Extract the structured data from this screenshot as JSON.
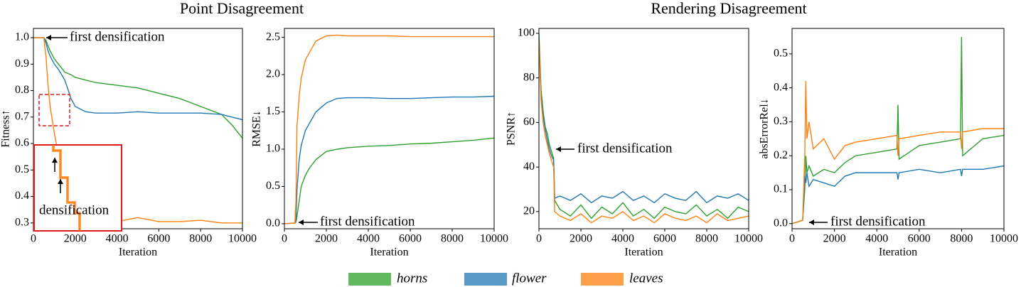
{
  "titles": [
    "Point Disagreement",
    "Rendering Disagreement"
  ],
  "chart_data": [
    {
      "type": "line",
      "ylabel": "Fitness↑",
      "xlabel": "Iteration",
      "annotations": [
        "first densification",
        "densification"
      ],
      "x": [
        0,
        500,
        600,
        700,
        800,
        1000,
        1200,
        1500,
        1800,
        2000,
        2500,
        3000,
        4000,
        5000,
        6000,
        7000,
        8000,
        9000,
        9500,
        10000
      ],
      "xlim": [
        0,
        10000
      ],
      "xticks": [
        0,
        2000,
        4000,
        6000,
        8000,
        10000
      ],
      "ylim": [
        0.278,
        1.035
      ],
      "yticks": [
        0.3,
        0.4,
        0.5,
        0.6,
        0.7,
        0.8,
        0.9,
        {
          "value": 1.0,
          "label": "1.0"
        }
      ],
      "series": [
        {
          "name": "horns",
          "color": "#2ca02c",
          "values": [
            1,
            1,
            0.99,
            0.97,
            0.95,
            0.92,
            0.9,
            0.87,
            0.86,
            0.85,
            0.84,
            0.83,
            0.82,
            0.81,
            0.79,
            0.77,
            0.74,
            0.71,
            0.67,
            0.62
          ]
        },
        {
          "name": "flower",
          "color": "#1f77b4",
          "values": [
            1,
            1,
            0.98,
            0.95,
            0.93,
            0.9,
            0.88,
            0.84,
            0.77,
            0.74,
            0.72,
            0.715,
            0.715,
            0.72,
            0.715,
            0.715,
            0.715,
            0.71,
            0.7,
            0.69
          ]
        },
        {
          "name": "leaves",
          "color": "#ff7f0e",
          "values": [
            1,
            1,
            0.93,
            0.82,
            0.74,
            0.64,
            0.55,
            0.45,
            0.38,
            0.32,
            0.305,
            0.305,
            0.305,
            0.32,
            0.305,
            0.305,
            0.31,
            0.3,
            0.3,
            0.3
          ]
        }
      ]
    },
    {
      "type": "line",
      "ylabel": "RMSE↓",
      "xlabel": "Iteration",
      "annotations": [
        "first densification"
      ],
      "x": [
        0,
        500,
        550,
        600,
        700,
        800,
        1000,
        1200,
        1500,
        2000,
        2500,
        3000,
        4000,
        5000,
        6000,
        7000,
        8000,
        9000,
        10000
      ],
      "xlim": [
        0,
        10000
      ],
      "xticks": [
        0,
        2000,
        4000,
        6000,
        8000,
        10000
      ],
      "ylim": [
        -0.067,
        2.62
      ],
      "yticks": [
        {
          "value": 0,
          "label": "0.0"
        },
        0.5,
        {
          "value": 1,
          "label": "1.0"
        },
        1.5,
        {
          "value": 2,
          "label": "2.0"
        },
        2.5
      ],
      "series": [
        {
          "name": "horns",
          "color": "#2ca02c",
          "values": [
            0,
            0.01,
            0.02,
            0.1,
            0.3,
            0.5,
            0.65,
            0.75,
            0.86,
            0.97,
            1.0,
            1.02,
            1.04,
            1.05,
            1.07,
            1.08,
            1.1,
            1.12,
            1.15
          ]
        },
        {
          "name": "flower",
          "color": "#1f77b4",
          "values": [
            0,
            0.01,
            0.05,
            0.45,
            0.85,
            1.05,
            1.25,
            1.35,
            1.5,
            1.62,
            1.68,
            1.69,
            1.69,
            1.68,
            1.68,
            1.69,
            1.7,
            1.7,
            1.71
          ]
        },
        {
          "name": "leaves",
          "color": "#ff7f0e",
          "values": [
            0,
            0.01,
            0.3,
            1.3,
            1.7,
            1.95,
            2.2,
            2.3,
            2.45,
            2.52,
            2.53,
            2.52,
            2.52,
            2.52,
            2.51,
            2.51,
            2.51,
            2.51,
            2.51
          ]
        }
      ]
    },
    {
      "type": "line",
      "ylabel": "PSNR↑",
      "xlabel": "Iteration",
      "annotations": [
        "first densification"
      ],
      "x": [
        0,
        100,
        200,
        300,
        400,
        500,
        600,
        700,
        750,
        1000,
        1500,
        2000,
        2500,
        3000,
        3500,
        4000,
        4500,
        5000,
        5500,
        6000,
        6500,
        7000,
        7500,
        8000,
        8500,
        9000,
        9500,
        10000
      ],
      "xlim": [
        0,
        10000
      ],
      "xticks": [
        0,
        2000,
        4000,
        6000,
        8000,
        10000
      ],
      "ylim": [
        12.3,
        102.2
      ],
      "yticks": [
        20,
        40,
        60,
        80,
        100
      ],
      "series": [
        {
          "name": "horns",
          "color": "#2ca02c",
          "values": [
            100,
            75,
            65,
            58,
            55,
            50,
            47,
            44,
            25,
            21,
            18,
            23,
            17,
            22,
            19,
            24,
            18,
            21,
            17,
            22,
            20,
            19,
            23,
            18,
            21,
            17,
            22,
            20
          ]
        },
        {
          "name": "flower",
          "color": "#1f77b4",
          "values": [
            98,
            72,
            63,
            57,
            52,
            48,
            45,
            43,
            26,
            27,
            25,
            28,
            24,
            27,
            26,
            29,
            25,
            27,
            24,
            28,
            26,
            25,
            29,
            24,
            27,
            26,
            28,
            25
          ]
        },
        {
          "name": "leaves",
          "color": "#ff7f0e",
          "values": [
            97,
            70,
            60,
            54,
            50,
            46,
            43,
            40,
            20,
            18,
            16,
            19,
            15,
            18,
            17,
            20,
            16,
            18,
            15,
            19,
            17,
            16,
            18,
            15,
            19,
            16,
            17,
            18
          ]
        }
      ]
    },
    {
      "type": "line",
      "ylabel": "absErrorRel↓",
      "xlabel": "Iteration",
      "annotations": [
        "first densification"
      ],
      "x": [
        0,
        500,
        600,
        650,
        700,
        800,
        1000,
        1500,
        2000,
        2500,
        3000,
        4000,
        4950,
        5000,
        5050,
        6000,
        7000,
        7950,
        8000,
        8050,
        9000,
        10000
      ],
      "xlim": [
        0,
        10000
      ],
      "xticks": [
        0,
        2000,
        4000,
        6000,
        8000,
        10000
      ],
      "ylim": [
        -0.015,
        0.575
      ],
      "yticks": [
        {
          "value": 0,
          "label": "0.0"
        },
        0.1,
        0.2,
        0.3,
        0.4,
        0.5
      ],
      "series": [
        {
          "name": "horns",
          "color": "#2ca02c",
          "values": [
            0,
            0.01,
            0.1,
            0.2,
            0.15,
            0.17,
            0.14,
            0.16,
            0.15,
            0.18,
            0.2,
            0.21,
            0.22,
            0.35,
            0.19,
            0.23,
            0.24,
            0.25,
            0.55,
            0.2,
            0.25,
            0.26
          ]
        },
        {
          "name": "flower",
          "color": "#1f77b4",
          "values": [
            0,
            0.01,
            0.14,
            0.12,
            0.15,
            0.11,
            0.13,
            0.12,
            0.11,
            0.14,
            0.15,
            0.15,
            0.15,
            0.13,
            0.15,
            0.16,
            0.15,
            0.16,
            0.14,
            0.16,
            0.16,
            0.17
          ]
        },
        {
          "name": "leaves",
          "color": "#ff7f0e",
          "values": [
            0,
            0.01,
            0.2,
            0.42,
            0.25,
            0.3,
            0.22,
            0.25,
            0.19,
            0.23,
            0.24,
            0.25,
            0.26,
            0.2,
            0.25,
            0.26,
            0.27,
            0.27,
            0.22,
            0.27,
            0.28,
            0.28
          ]
        }
      ]
    }
  ]
}
